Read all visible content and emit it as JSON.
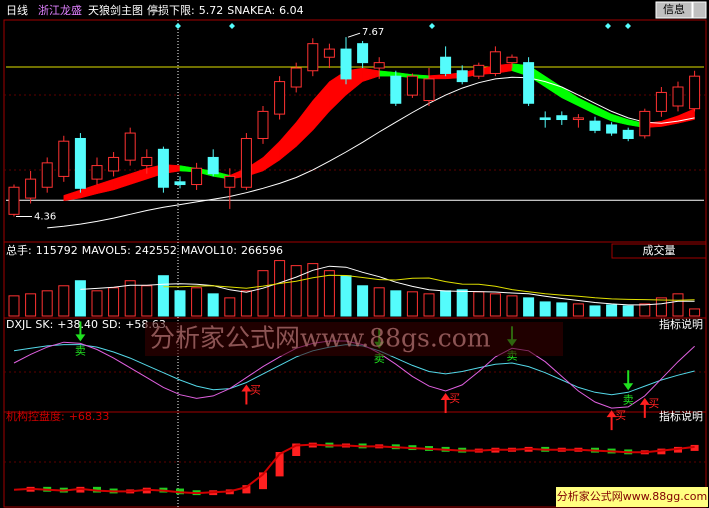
{
  "header": {
    "period": "日线",
    "stock": "浙江龙盛",
    "button": "信息"
  },
  "watermark": "分析家公式网www.88gs.com",
  "footer": "分析家公式网www.88gg.com",
  "chart_data": [
    {
      "type": "candlestick",
      "title": "天狼剑主图",
      "stop": {
        "label": "停损下限:",
        "value": 5.72
      },
      "snake": {
        "label": "SNAKEA:",
        "value": 6.04
      },
      "up_color": "#ff3232",
      "down_color": "#54fcfc",
      "ylim": [
        4.0,
        7.95
      ],
      "open": [
        4.4,
        4.7,
        4.9,
        5.1,
        5.8,
        5.05,
        5.2,
        5.4,
        5.3,
        5.6,
        5.0,
        4.95,
        5.45,
        4.9,
        4.9,
        5.8,
        6.25,
        6.75,
        7.05,
        7.3,
        7.45,
        7.55,
        7.1,
        6.95,
        6.6,
        6.5,
        7.3,
        7.05,
        6.95,
        7.0,
        7.2,
        7.2,
        6.18,
        6.22,
        6.15,
        6.12,
        6.05,
        5.95,
        5.85,
        6.3,
        6.4,
        6.35
      ],
      "high": [
        4.95,
        5.2,
        5.45,
        5.85,
        5.9,
        5.45,
        5.55,
        6.0,
        5.6,
        5.65,
        5.1,
        5.35,
        5.6,
        5.25,
        5.9,
        6.4,
        6.95,
        7.2,
        7.65,
        7.55,
        7.67,
        7.6,
        7.3,
        7.05,
        7.0,
        7.1,
        7.5,
        7.15,
        7.2,
        7.5,
        7.35,
        7.3,
        6.3,
        6.3,
        6.25,
        6.2,
        6.1,
        6.0,
        6.35,
        6.75,
        6.85,
        7.05
      ],
      "low": [
        4.36,
        4.6,
        4.8,
        5.0,
        4.8,
        4.95,
        5.1,
        5.3,
        5.15,
        4.8,
        4.88,
        4.85,
        5.1,
        4.5,
        4.85,
        5.7,
        6.15,
        6.65,
        6.95,
        7.1,
        6.8,
        7.1,
        6.9,
        6.4,
        6.55,
        6.4,
        6.95,
        6.8,
        6.9,
        6.95,
        7.1,
        6.4,
        6.0,
        6.05,
        6.0,
        5.9,
        5.85,
        5.75,
        5.8,
        6.2,
        6.3,
        6.3
      ],
      "close": [
        4.9,
        5.05,
        5.35,
        5.75,
        4.88,
        5.3,
        5.45,
        5.9,
        5.45,
        4.9,
        4.95,
        5.25,
        5.15,
        5.1,
        5.8,
        6.3,
        6.85,
        7.1,
        7.55,
        7.45,
        6.9,
        7.2,
        7.2,
        6.45,
        6.95,
        6.9,
        7.0,
        6.85,
        7.15,
        7.4,
        7.3,
        6.45,
        6.15,
        6.15,
        6.18,
        5.95,
        5.9,
        5.8,
        6.3,
        6.65,
        6.75,
        6.95
      ],
      "band": {
        "rise_color": "#ff0000",
        "fall_color": "#00ff00",
        "upper": [
          null,
          null,
          null,
          4.75,
          4.85,
          4.95,
          5.05,
          5.15,
          5.25,
          5.32,
          5.3,
          5.25,
          5.2,
          5.12,
          5.25,
          5.45,
          5.75,
          6.1,
          6.5,
          6.85,
          7.05,
          7.1,
          7.05,
          7.02,
          6.98,
          6.96,
          6.98,
          7.02,
          7.08,
          7.15,
          7.18,
          7.15,
          6.95,
          6.75,
          6.55,
          6.4,
          6.25,
          6.15,
          6.08,
          6.12,
          6.22,
          6.35
        ],
        "lower": [
          null,
          null,
          null,
          4.65,
          4.7,
          4.78,
          4.85,
          4.95,
          5.05,
          5.15,
          5.2,
          5.18,
          5.1,
          5.05,
          5.1,
          5.2,
          5.4,
          5.65,
          5.95,
          6.3,
          6.6,
          6.85,
          6.95,
          6.95,
          6.92,
          6.9,
          6.9,
          6.92,
          6.98,
          7.0,
          7.05,
          6.95,
          6.75,
          6.55,
          6.4,
          6.25,
          6.12,
          6.05,
          6.0,
          6.02,
          6.08,
          6.15
        ]
      },
      "ma": {
        "color": "#ffffff",
        "values": [
          null,
          null,
          4.15,
          4.18,
          4.22,
          4.27,
          4.33,
          4.4,
          4.47,
          4.53,
          4.58,
          4.63,
          4.68,
          4.73,
          4.8,
          4.88,
          4.97,
          5.08,
          5.22,
          5.38,
          5.55,
          5.73,
          5.92,
          6.1,
          6.28,
          6.45,
          6.6,
          6.73,
          6.83,
          6.9,
          6.93,
          6.92,
          6.85,
          6.75,
          6.6,
          6.45,
          6.3,
          6.18,
          6.1,
          6.08,
          6.12,
          6.18
        ]
      },
      "levels": [
        {
          "value": 7.12,
          "color": "#e0e000"
        },
        {
          "value": 4.66,
          "color": "#ffffff"
        }
      ],
      "annotations": {
        "high": 7.67,
        "low": 4.36
      }
    },
    {
      "type": "bar",
      "title": "成交量",
      "ylim": [
        0,
        950000
      ],
      "series": [
        {
          "name": "总手:",
          "values": [
            330000,
            363000,
            412500,
            495000,
            577500,
            412500,
            462000,
            577500,
            495000,
            660000,
            412500,
            462000,
            363000,
            297000,
            412500,
            742500,
            907500,
            825000,
            858000,
            742500,
            660000,
            495000,
            462000,
            412500,
            396000,
            363000,
            412500,
            429000,
            396000,
            363000,
            330000,
            297000,
            231000,
            214500,
            198000,
            165000,
            181500,
            165000,
            198000,
            297000,
            363000,
            115792
          ]
        },
        {
          "name": "MAVOL5:",
          "color": "#ffffff",
          "values": [
            null,
            null,
            null,
            null,
            435600,
            452100,
            471900,
            504900,
            504900,
            521400,
            528000,
            521400,
            498300,
            429000,
            389400,
            455400,
            544500,
            636900,
            749100,
            815100,
            798600,
            716100,
            643500,
            554400,
            485100,
            429000,
            409200,
            402600,
            399300,
            392700,
            376200,
            363000,
            323400,
            287100,
            254100,
            221100,
            198000,
            181500,
            181500,
            201300,
            240900,
            242552
          ]
        },
        {
          "name": "MAVOL10:",
          "color": "#e0e000",
          "values": [
            null,
            null,
            null,
            null,
            null,
            null,
            null,
            null,
            null,
            478500,
            480150,
            489000,
            495000,
            475000,
            455000,
            490000,
            533000,
            568000,
            625000,
            668000,
            663000,
            630000,
            596000,
            590000,
            617000,
            622000,
            563000,
            523000,
            521000,
            488000,
            432000,
            396000,
            366000,
            343000,
            325000,
            298000,
            280000,
            272000,
            269000,
            262000,
            259000,
            266596
          ]
        }
      ]
    },
    {
      "type": "line",
      "title": "DXJL",
      "note": "指标说明",
      "ylim": [
        4,
        72
      ],
      "buy_color": "#ff2020",
      "sell_color": "#20e020",
      "series": [
        {
          "name": "SK:",
          "color": "#54d8e8",
          "value_labels": {
            "41": "+38.40"
          },
          "values": [
            55,
            57,
            59,
            60,
            60,
            58,
            54,
            49,
            43,
            37,
            31,
            26,
            23,
            24,
            29,
            36,
            43,
            50,
            55,
            58,
            60,
            59,
            55,
            49,
            43,
            38,
            36,
            38,
            41,
            44,
            45,
            42,
            37,
            31,
            25,
            21,
            19,
            21,
            26,
            31,
            35,
            38.4
          ]
        },
        {
          "name": "SD:",
          "color": "#e060e0",
          "value_labels": {
            "41": "+58.63"
          },
          "values": [
            45,
            52,
            58,
            62,
            61,
            56,
            49,
            41,
            33,
            25,
            19,
            16,
            18,
            24,
            33,
            42,
            50,
            57,
            61,
            63,
            63,
            60,
            53,
            44,
            34,
            26,
            22,
            27,
            38,
            50,
            57,
            55,
            46,
            34,
            22,
            13,
            8,
            9,
            18,
            32,
            46,
            58.63
          ]
        }
      ],
      "signals": [
        {
          "index": 4,
          "label": "卖"
        },
        {
          "index": 14,
          "label": "买"
        },
        {
          "index": 22,
          "label": "卖"
        },
        {
          "index": 26,
          "label": "买"
        },
        {
          "index": 30,
          "label": "卖"
        },
        {
          "index": 36,
          "label": "买"
        },
        {
          "index": 37,
          "label": "卖"
        },
        {
          "index": 38,
          "label": "买"
        }
      ]
    },
    {
      "type": "control",
      "note": "指标说明",
      "ylim": [
        0,
        100
      ],
      "up_color": "#ff2020",
      "down_color": "#20d020",
      "series": [
        {
          "name": "机构控盘度:",
          "color": "#d00000",
          "value_labels": {
            "41": "+68.33"
          },
          "values": [
            18,
            19,
            18,
            17,
            19,
            17,
            16,
            16,
            18,
            17,
            15,
            14,
            15,
            16,
            21,
            36,
            60,
            70,
            71,
            70,
            70,
            69,
            69,
            68,
            67,
            66,
            65,
            64,
            64,
            65,
            65,
            66,
            65,
            65,
            65,
            64,
            63,
            62,
            62,
            64,
            66,
            68.33
          ]
        }
      ]
    }
  ]
}
